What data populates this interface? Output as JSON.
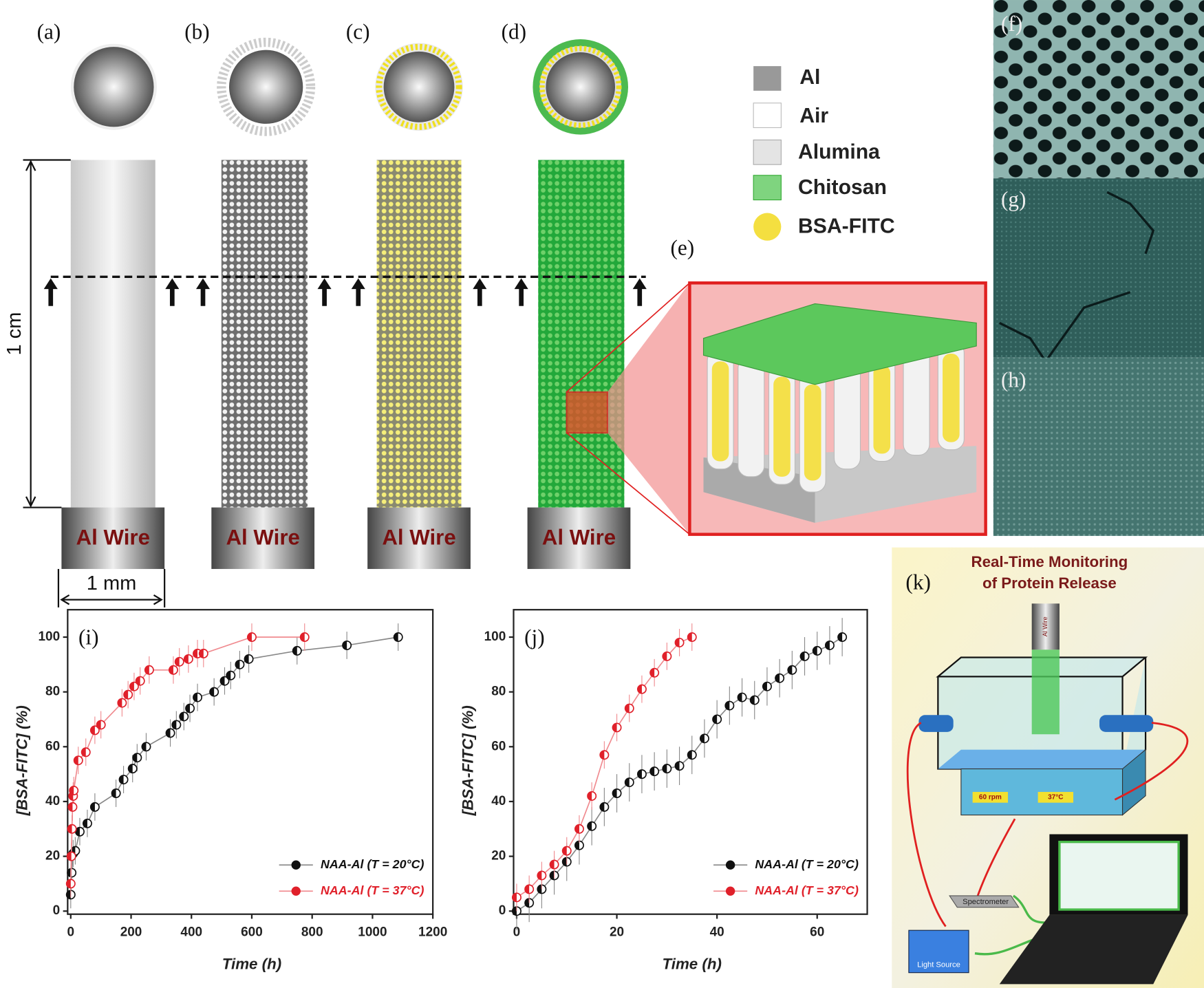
{
  "diagram": {
    "panel_labels": [
      "(a)",
      "(b)",
      "(c)",
      "(d)",
      "(e)",
      "(f)",
      "(g)",
      "(h)",
      "(k)"
    ],
    "legend": [
      "Al",
      "Air",
      "Alumina",
      "Chitosan",
      "BSA-FITC"
    ],
    "wire_label": "Al Wire",
    "length_label": "1 cm",
    "width_label": "1 mm",
    "setup": {
      "title": [
        "Real-Time Monitoring",
        "of Protein Release"
      ],
      "wire": "Al Wire",
      "speed": "60 rpm",
      "temperature": "37°C",
      "spectrometer": "Spectrometer",
      "light_source": "Light Source"
    }
  },
  "chart_data": [
    {
      "type": "line",
      "panel_label": "(i)",
      "xlabel": "Time (h)",
      "ylabel": "[BSA-FITC] (%)",
      "xlim": [
        0,
        1200
      ],
      "xticks": [
        0,
        200,
        400,
        600,
        800,
        1000,
        1200
      ],
      "ylim": [
        0,
        110
      ],
      "yticks": [
        0,
        20,
        40,
        60,
        80,
        100
      ],
      "legend": "lower right",
      "series": [
        {
          "name": "NAA-Al (T = 20°C)",
          "color": "#111111",
          "line_color": "#888888",
          "error": 5,
          "x": [
            0,
            3,
            8,
            15,
            30,
            55,
            80,
            150,
            175,
            205,
            220,
            250,
            330,
            350,
            375,
            395,
            420,
            475,
            510,
            530,
            560,
            590,
            750,
            915,
            1085
          ],
          "values": [
            6,
            14,
            21,
            22,
            29,
            32,
            38,
            43,
            48,
            52,
            56,
            60,
            65,
            68,
            71,
            74,
            78,
            80,
            84,
            86,
            90,
            92,
            95,
            97,
            100
          ]
        },
        {
          "name": "NAA-Al (T = 37°C)",
          "color": "#e0202a",
          "line_color": "#f08a8f",
          "error": 5,
          "x": [
            0,
            2,
            4,
            6,
            8,
            10,
            25,
            50,
            80,
            100,
            170,
            190,
            210,
            230,
            260,
            340,
            360,
            390,
            420,
            440,
            600,
            775
          ],
          "values": [
            10,
            20,
            30,
            38,
            42,
            44,
            55,
            58,
            66,
            68,
            76,
            79,
            82,
            84,
            88,
            88,
            91,
            92,
            94,
            94,
            100,
            100
          ]
        }
      ]
    },
    {
      "type": "line",
      "panel_label": "(j)",
      "xlabel": "Time (h)",
      "ylabel": "[BSA-FITC] (%)",
      "xlim": [
        0,
        70
      ],
      "xticks": [
        0,
        20,
        40,
        60
      ],
      "ylim": [
        0,
        110
      ],
      "yticks": [
        0,
        20,
        40,
        60,
        80,
        100
      ],
      "legend": "lower right",
      "series": [
        {
          "name": "NAA-Al (T = 20°C)",
          "color": "#111111",
          "line_color": "#888888",
          "error": 7,
          "x": [
            0,
            2.5,
            5,
            7.5,
            10,
            12.5,
            15,
            17.5,
            20,
            22.5,
            25,
            27.5,
            30,
            32.5,
            35,
            37.5,
            40,
            42.5,
            45,
            47.5,
            50,
            52.5,
            55,
            57.5,
            60,
            62.5,
            65
          ],
          "values": [
            0,
            3,
            8,
            13,
            18,
            24,
            31,
            38,
            43,
            47,
            50,
            51,
            52,
            53,
            57,
            63,
            70,
            75,
            78,
            77,
            82,
            85,
            88,
            93,
            95,
            97,
            100
          ]
        },
        {
          "name": "NAA-Al (T = 37°C)",
          "color": "#e0202a",
          "line_color": "#f08a8f",
          "error": 5,
          "x": [
            0,
            2.5,
            5,
            7.5,
            10,
            12.5,
            15,
            17.5,
            20,
            22.5,
            25,
            27.5,
            30,
            32.5,
            35
          ],
          "values": [
            5,
            8,
            13,
            17,
            22,
            30,
            42,
            57,
            67,
            74,
            81,
            87,
            93,
            98,
            100
          ]
        }
      ]
    }
  ]
}
